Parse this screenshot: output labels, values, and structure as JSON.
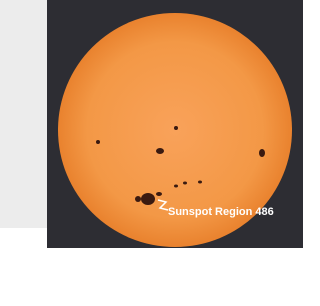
{
  "image": {
    "label": "Sunspot Region 486"
  }
}
